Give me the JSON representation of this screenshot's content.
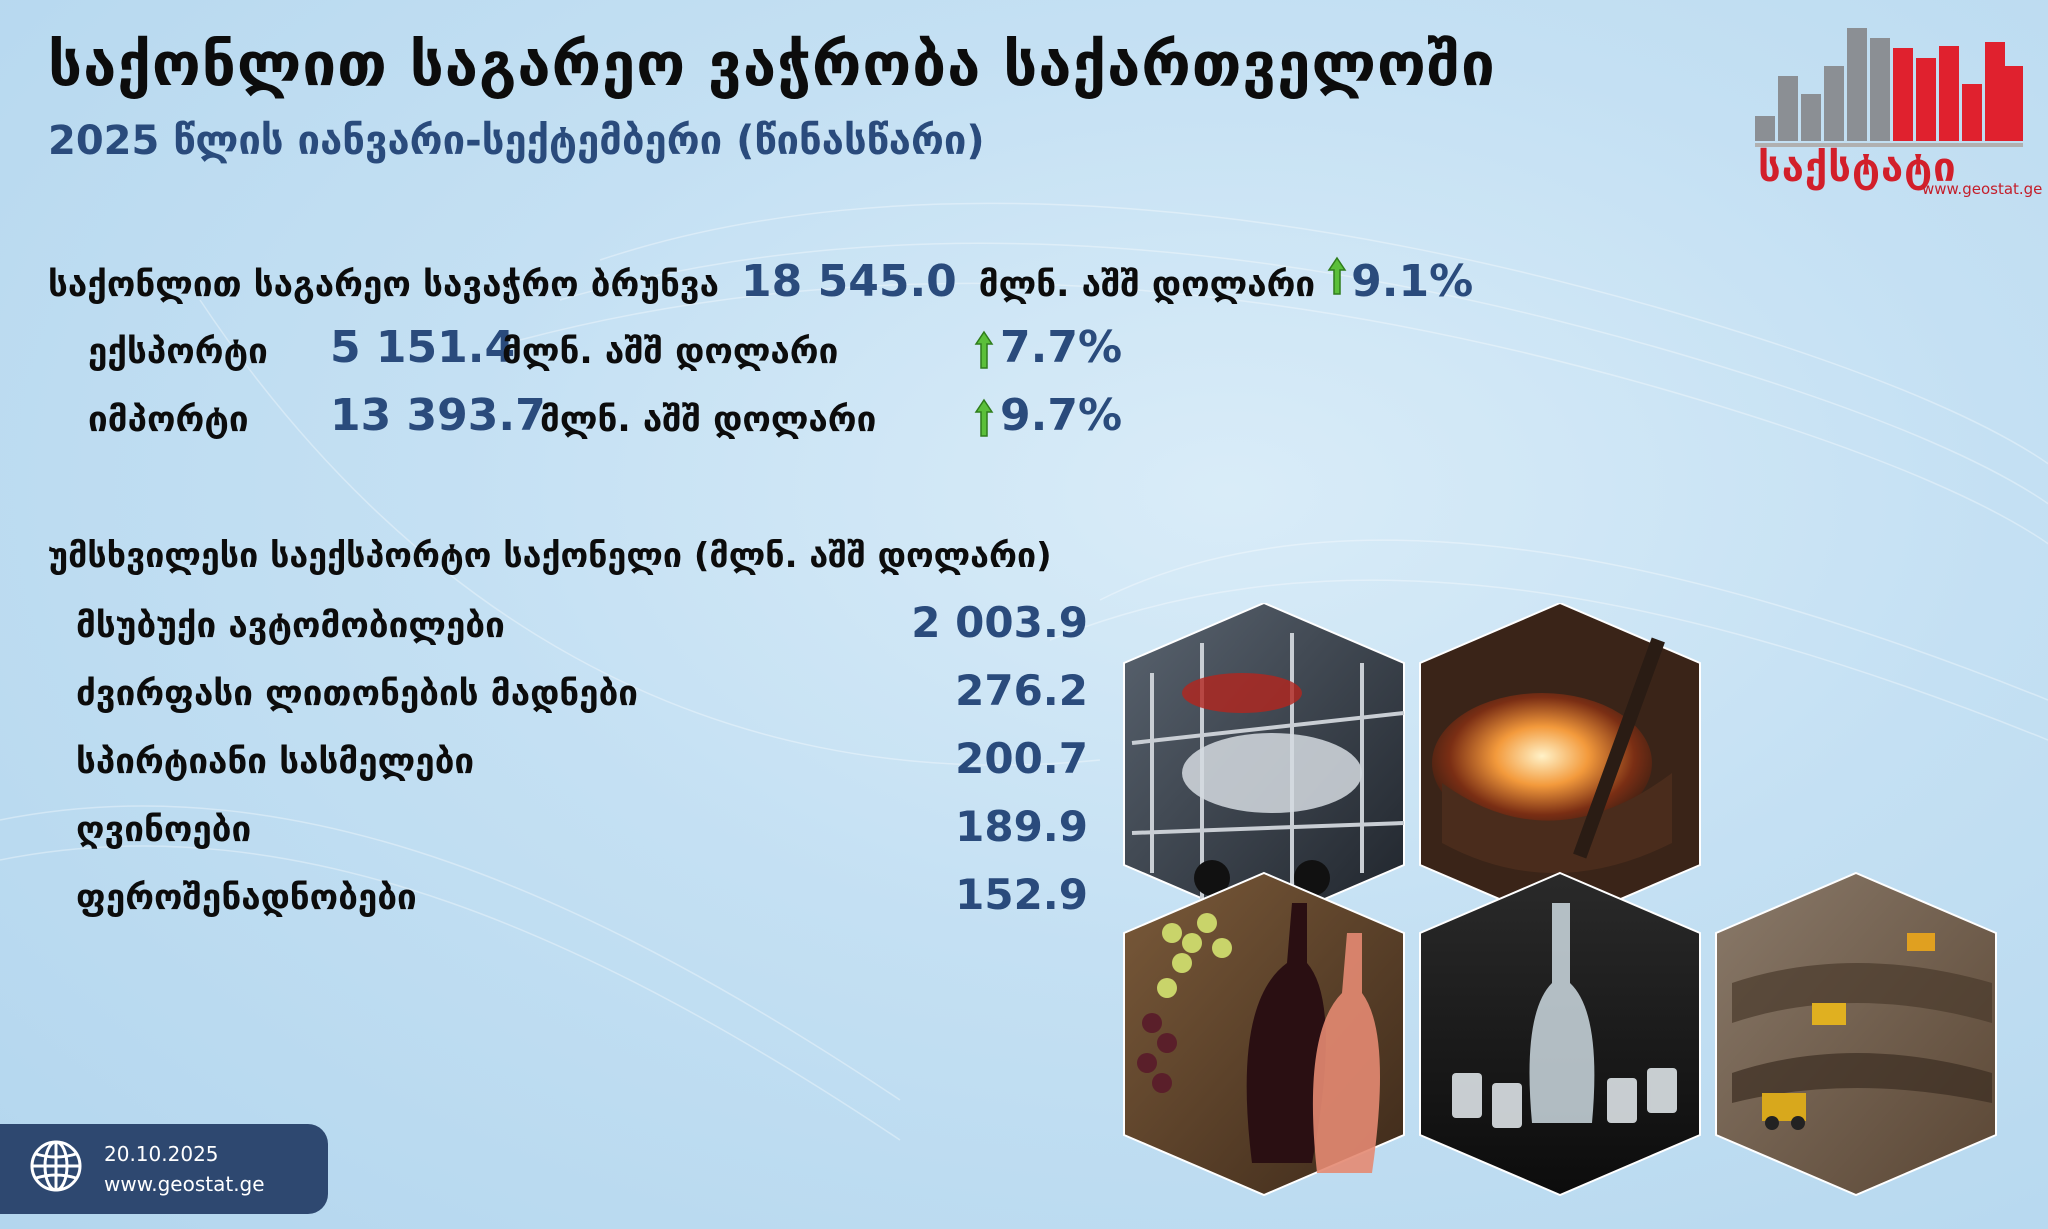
{
  "header": {
    "title": "საქონლით საგარეო ვაჭრობა საქართველოში",
    "subtitle": "2025 წლის იანვარი-სექტემბერი (წინასწარი)"
  },
  "logo": {
    "text": "საქსტატი",
    "url": "www.geostat.ge"
  },
  "turnover": {
    "label": "საქონლით საგარეო სავაჭრო ბრუნვა",
    "value": "18 545.0",
    "unit": "მლნ. აშშ დოლარი",
    "change": "9.1%",
    "direction": "up"
  },
  "export": {
    "label": "ექსპორტი",
    "value": "5 151.4",
    "unit": "მლნ. აშშ დოლარი",
    "change": "7.7%",
    "direction": "up"
  },
  "import": {
    "label": "იმპორტი",
    "value": "13 393.7",
    "unit": "მლნ. აშშ დოლარი",
    "change": "9.7%",
    "direction": "up"
  },
  "top_exports": {
    "title": "უმსხვილესი საექსპორტო საქონელი (მლნ. აშშ დოლარი)",
    "items": [
      {
        "name": "მსუბუქი ავტომობილები",
        "value": "2 003.9"
      },
      {
        "name": "ძვირფასი ლითონების მადნები",
        "value": "276.2"
      },
      {
        "name": "სპირტიანი სასმელები",
        "value": "200.7"
      },
      {
        "name": "ღვინოები",
        "value": "189.9"
      },
      {
        "name": "ფეროშენადნობები",
        "value": "152.9"
      }
    ]
  },
  "footer": {
    "date": "20.10.2025",
    "url": "www.geostat.ge"
  },
  "colors": {
    "accent": "#2a4b7c",
    "brand_red": "#d21f2a",
    "up_arrow": "#5bbf3a",
    "footer_bg": "#2e4870"
  },
  "icons": [
    "up-arrow-icon",
    "globe-icon"
  ]
}
